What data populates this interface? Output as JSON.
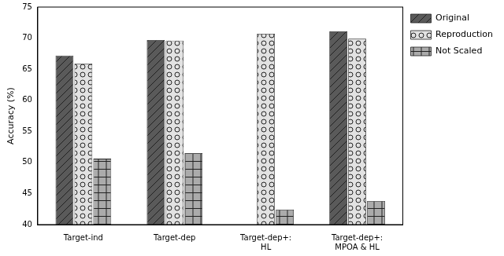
{
  "chart_data": {
    "type": "bar",
    "y_label": "Accuracy (%)",
    "categories": [
      "Target-ind",
      "Target-dep",
      "Target-dep+: HL",
      "Target-dep+: MPOA & HL"
    ],
    "series": [
      {
        "name": "Original",
        "color": "#5a5a5a",
        "values": [
          67.2,
          69.7,
          null,
          71.1
        ]
      },
      {
        "name": "Reproduction",
        "color": "#e2e2e2",
        "values": [
          65.9,
          69.6,
          70.7,
          69.9
        ]
      },
      {
        "name": "Not Scaled",
        "color": "#ababab",
        "values": [
          50.6,
          51.5,
          42.4,
          43.8
        ]
      }
    ],
    "ylim": [
      40,
      75
    ],
    "yticks": [
      40,
      45,
      50,
      55,
      60,
      65,
      70,
      75
    ],
    "grid": false,
    "legend": "right"
  }
}
